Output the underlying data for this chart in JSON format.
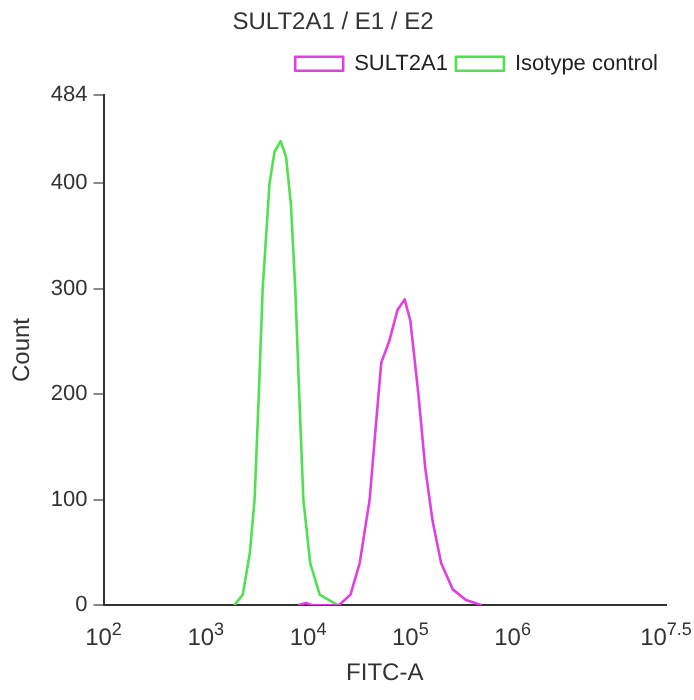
{
  "chart_data": {
    "type": "line",
    "title": "SULT2A1 / E1 / E2",
    "xlabel": "FITC-A",
    "ylabel": "Count",
    "log": "x",
    "legend": "top right",
    "marker": "none",
    "grid": false,
    "xlim": [
      100,
      31622777
    ],
    "xticks": [
      {
        "value": 100,
        "label": "10$^{2}$"
      },
      {
        "value": 1000,
        "label": "10$^{3}$"
      },
      {
        "value": 10000,
        "label": "10$^{4}$"
      },
      {
        "value": 100000,
        "label": "10$^{5}$"
      },
      {
        "value": 1000000,
        "label": "10$^{6}$"
      },
      {
        "value": 31622777,
        "label": "10$^{7.5}$"
      }
    ],
    "ylim": [
      0,
      484
    ],
    "yticks": [
      0,
      100,
      200,
      300,
      400,
      484
    ],
    "series": [
      {
        "name": "SULT2A1",
        "color": "#e040e0",
        "x": [
          8000,
          9500,
          11000,
          20000,
          26000,
          32000,
          40000,
          46000,
          52000,
          62000,
          75000,
          88000,
          100000,
          120000,
          140000,
          165000,
          200000,
          260000,
          350000,
          500000
        ],
        "values": [
          0,
          2,
          0,
          0,
          10,
          40,
          100,
          170,
          230,
          250,
          280,
          290,
          270,
          200,
          130,
          80,
          40,
          15,
          5,
          0
        ]
      },
      {
        "name": "Isotype control",
        "color": "#50e050",
        "x": [
          1900,
          2300,
          2700,
          3000,
          3300,
          3600,
          4200,
          4700,
          5400,
          6100,
          6800,
          7500,
          8200,
          9000,
          10500,
          13000,
          19500
        ],
        "values": [
          0,
          10,
          50,
          100,
          200,
          300,
          400,
          430,
          440,
          425,
          380,
          300,
          200,
          100,
          40,
          10,
          0
        ]
      }
    ]
  }
}
